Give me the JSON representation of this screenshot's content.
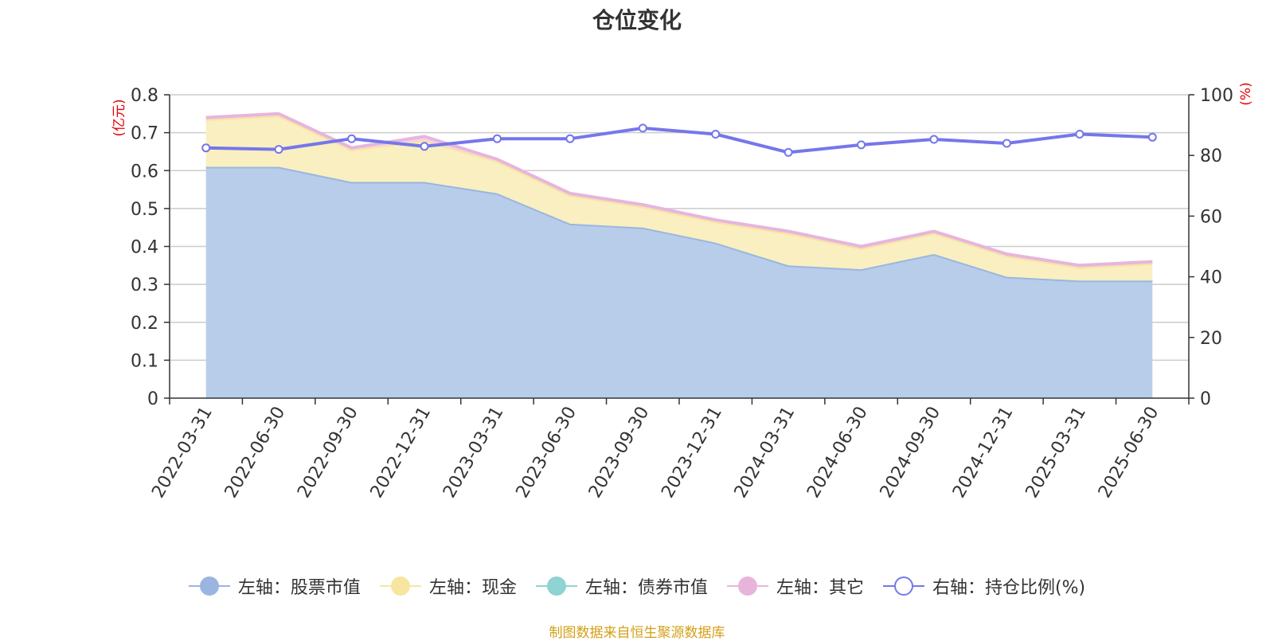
{
  "chart_data": {
    "type": "area",
    "title": "仓位变化",
    "left_unit": "(亿元)",
    "right_unit": "(%)",
    "categories": [
      "2022-03-31",
      "2022-06-30",
      "2022-09-30",
      "2022-12-31",
      "2023-03-31",
      "2023-06-30",
      "2023-09-30",
      "2023-12-31",
      "2024-03-31",
      "2024-06-30",
      "2024-09-30",
      "2024-12-31",
      "2025-03-31",
      "2025-06-30"
    ],
    "left_ylim": [
      0,
      0.8
    ],
    "left_yticks": [
      "0",
      "0.1",
      "0.2",
      "0.3",
      "0.4",
      "0.5",
      "0.6",
      "0.7",
      "0.8"
    ],
    "right_ylim": [
      0,
      100
    ],
    "right_yticks": [
      "0",
      "20",
      "40",
      "60",
      "80",
      "100"
    ],
    "stacked": true,
    "grid": true,
    "legend_position": "bottom",
    "series": [
      {
        "name": "左轴：股票市值",
        "axis": "left",
        "stack": true,
        "color": "#9ab6e0",
        "fill": "#b8cdea",
        "values": [
          0.61,
          0.61,
          0.57,
          0.57,
          0.54,
          0.46,
          0.45,
          0.41,
          0.35,
          0.34,
          0.38,
          0.32,
          0.31,
          0.31
        ]
      },
      {
        "name": "左轴：现金",
        "axis": "left",
        "stack": true,
        "color": "#f7e5a0",
        "fill": "#faefc0",
        "values": [
          0.125,
          0.135,
          0.085,
          0.11,
          0.085,
          0.075,
          0.055,
          0.055,
          0.085,
          0.055,
          0.055,
          0.055,
          0.035,
          0.045
        ]
      },
      {
        "name": "左轴：债券市值",
        "axis": "left",
        "stack": true,
        "color": "#8fd3d3",
        "fill": "#8fd3d3",
        "values": [
          0,
          0,
          0,
          0,
          0,
          0,
          0,
          0,
          0,
          0,
          0,
          0,
          0,
          0
        ]
      },
      {
        "name": "左轴：其它",
        "axis": "left",
        "stack": true,
        "color": "#e7b5dc",
        "fill": "#f2d3eb",
        "values": [
          0.005,
          0.005,
          0.005,
          0.01,
          0.005,
          0.005,
          0.005,
          0.005,
          0.005,
          0.005,
          0.005,
          0.005,
          0.005,
          0.005
        ]
      },
      {
        "name": "右轴：持仓比例(%)",
        "axis": "right",
        "stack": false,
        "color": "#7477ea",
        "values": [
          82.5,
          82,
          85.5,
          83,
          85.5,
          85.5,
          89,
          87,
          81,
          83.5,
          85.3,
          84,
          87,
          86
        ]
      }
    ]
  },
  "footer": "制图数据来自恒生聚源数据库"
}
